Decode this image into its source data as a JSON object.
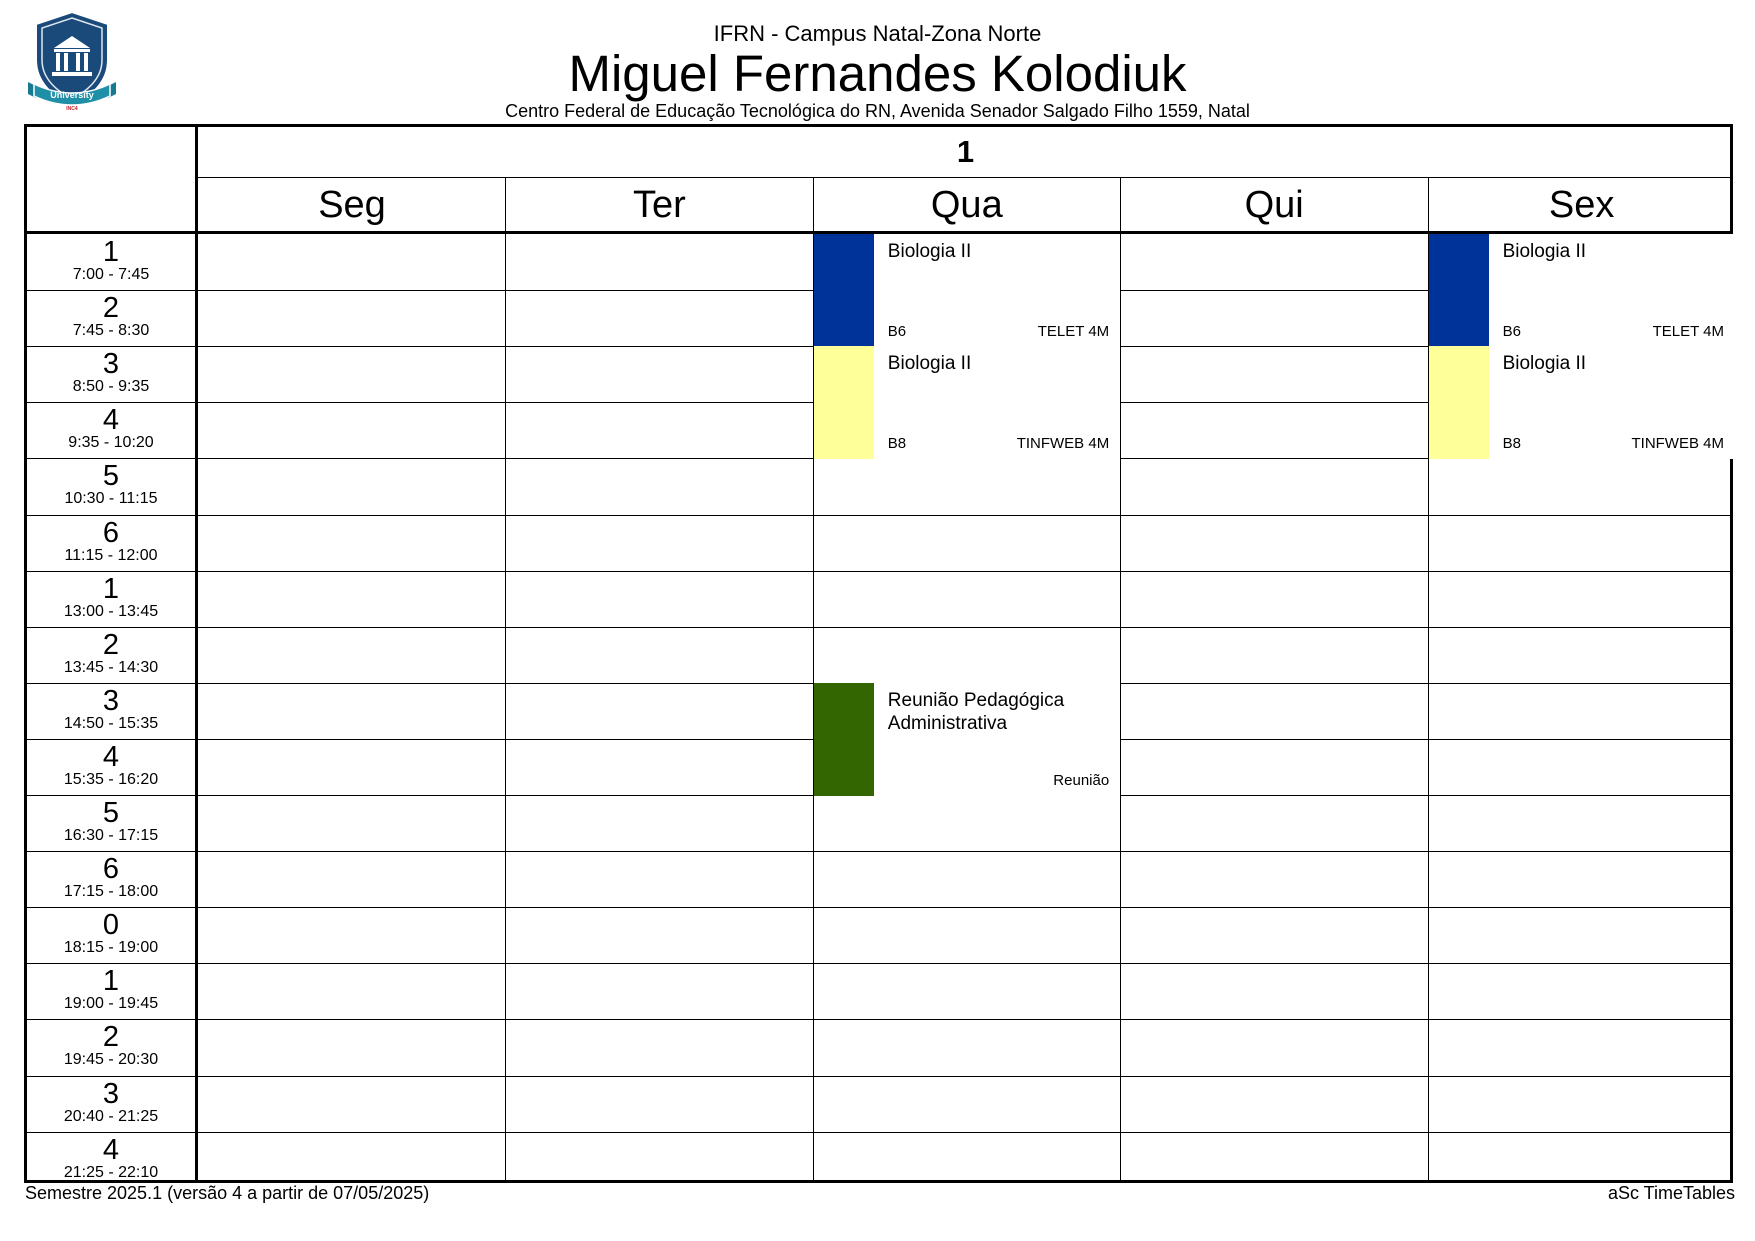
{
  "header": {
    "institution": "IFRN - Campus Natal-Zona Norte",
    "teacher": "Miguel Fernandes Kolodiuk",
    "address": "Centro Federal de Educação Tecnológica do RN, Avenida Senador Salgado Filho 1559, Natal"
  },
  "logo": {
    "banner_text": "University",
    "sub_text": "INC4",
    "colors": {
      "shield": "#1a4a7a",
      "banner": "#1f8fa8",
      "sub": "#c0202a"
    }
  },
  "timetable": {
    "week_label": "1",
    "days": [
      "Seg",
      "Ter",
      "Qua",
      "Qui",
      "Sex"
    ],
    "periods": [
      {
        "num": "1",
        "time": "7:00 - 7:45"
      },
      {
        "num": "2",
        "time": "7:45 - 8:30"
      },
      {
        "num": "3",
        "time": "8:50 - 9:35"
      },
      {
        "num": "4",
        "time": "9:35 - 10:20"
      },
      {
        "num": "5",
        "time": "10:30 - 11:15"
      },
      {
        "num": "6",
        "time": "11:15 - 12:00"
      },
      {
        "num": "1",
        "time": "13:00 - 13:45"
      },
      {
        "num": "2",
        "time": "13:45 - 14:30"
      },
      {
        "num": "3",
        "time": "14:50 - 15:35"
      },
      {
        "num": "4",
        "time": "15:35 - 16:20"
      },
      {
        "num": "5",
        "time": "16:30 - 17:15"
      },
      {
        "num": "6",
        "time": "17:15 - 18:00"
      },
      {
        "num": "0",
        "time": "18:15 - 19:00"
      },
      {
        "num": "1",
        "time": "19:00 - 19:45"
      },
      {
        "num": "2",
        "time": "19:45 - 20:30"
      },
      {
        "num": "3",
        "time": "20:40 - 21:25"
      },
      {
        "num": "4",
        "time": "21:25 - 22:10"
      }
    ],
    "lessons": [
      {
        "day": 2,
        "start": 0,
        "span": 2,
        "subject": "Biologia II",
        "room": "B6",
        "class": "TELET 4M",
        "color": "#00339a"
      },
      {
        "day": 4,
        "start": 0,
        "span": 2,
        "subject": "Biologia II",
        "room": "B6",
        "class": "TELET 4M",
        "color": "#00339a"
      },
      {
        "day": 2,
        "start": 2,
        "span": 2,
        "subject": "Biologia II",
        "room": "B8",
        "class": "TINFWEB 4M",
        "color": "#ffff99"
      },
      {
        "day": 4,
        "start": 2,
        "span": 2,
        "subject": "Biologia II",
        "room": "B8",
        "class": "TINFWEB 4M",
        "color": "#ffff99"
      },
      {
        "day": 2,
        "start": 8,
        "span": 2,
        "subject": "Reunião Pedagógica Administrativa",
        "room": "",
        "class": "Reunião",
        "color": "#336600"
      }
    ]
  },
  "footer": {
    "left": "Semestre 2025.1 (versão 4 a partir de 07/05/2025)",
    "right": "aSc TimeTables"
  }
}
